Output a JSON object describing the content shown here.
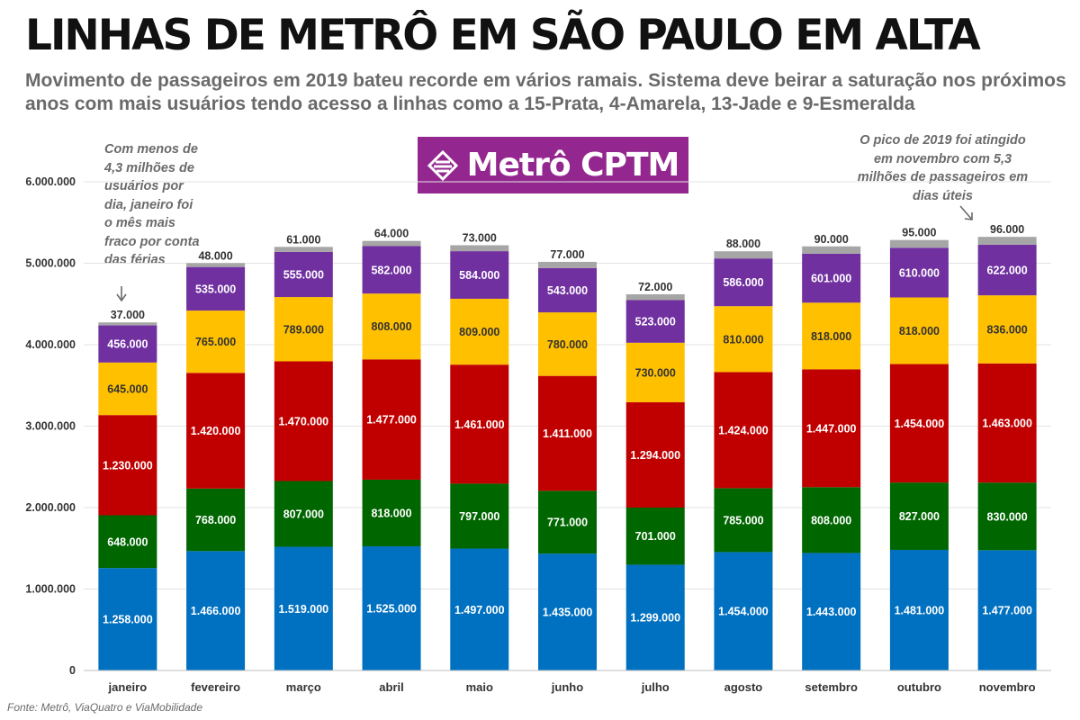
{
  "header": {
    "title": "LINHAS DE METRÔ EM SÃO PAULO EM ALTA",
    "subtitle": "Movimento de passageiros em 2019 bateu recorde em vários ramais. Sistema deve beirar a saturação nos próximos anos com mais usuários tendo acesso a linhas como a 15-Prata, 4-Amarela, 13-Jade e 9-Esmeralda"
  },
  "logo": {
    "text": "Metrô CPTM",
    "color": "#93278f"
  },
  "annotations": {
    "left": "Com menos de 4,3 milhões de usuários por dia, janeiro foi o mês mais fraco por conta das férias",
    "right": "O pico de 2019 foi atingido em novembro com 5,3 milhões de passageiros em dias úteis"
  },
  "source": "Fonte: Metrô, ViaQuatro e ViaMobilidade",
  "chart_data": {
    "type": "bar",
    "stacked": true,
    "categories": [
      "janeiro",
      "fevereiro",
      "março",
      "abril",
      "maio",
      "junho",
      "julho",
      "agosto",
      "setembro",
      "outubro",
      "novembro"
    ],
    "series": [
      {
        "color": "#0070c0",
        "values": [
          1258000,
          1466000,
          1519000,
          1525000,
          1497000,
          1435000,
          1299000,
          1454000,
          1443000,
          1481000,
          1477000
        ],
        "labels": [
          "1.258.000",
          "1.466.000",
          "1.519.000",
          "1.525.000",
          "1.497.000",
          "1.435.000",
          "1.299.000",
          "1.454.000",
          "1.443.000",
          "1.481.000",
          "1.477.000"
        ]
      },
      {
        "color": "#006600",
        "values": [
          648000,
          768000,
          807000,
          818000,
          797000,
          771000,
          701000,
          785000,
          808000,
          827000,
          830000
        ],
        "labels": [
          "648.000",
          "768.000",
          "807.000",
          "818.000",
          "797.000",
          "771.000",
          "701.000",
          "785.000",
          "808.000",
          "827.000",
          "830.000"
        ]
      },
      {
        "color": "#c00000",
        "values": [
          1230000,
          1420000,
          1470000,
          1477000,
          1461000,
          1411000,
          1294000,
          1424000,
          1447000,
          1454000,
          1463000
        ],
        "labels": [
          "1.230.000",
          "1.420.000",
          "1.470.000",
          "1.477.000",
          "1.461.000",
          "1.411.000",
          "1.294.000",
          "1.424.000",
          "1.447.000",
          "1.454.000",
          "1.463.000"
        ]
      },
      {
        "color": "#ffc000",
        "values": [
          645000,
          765000,
          789000,
          808000,
          809000,
          780000,
          730000,
          810000,
          818000,
          818000,
          836000
        ],
        "labels": [
          "645.000",
          "765.000",
          "789.000",
          "808.000",
          "809.000",
          "780.000",
          "730.000",
          "810.000",
          "818.000",
          "818.000",
          "836.000"
        ]
      },
      {
        "color": "#7030a0",
        "values": [
          456000,
          535000,
          555000,
          582000,
          584000,
          543000,
          523000,
          586000,
          601000,
          610000,
          622000
        ],
        "labels": [
          "456.000",
          "535.000",
          "555.000",
          "582.000",
          "584.000",
          "543.000",
          "523.000",
          "586.000",
          "601.000",
          "610.000",
          "622.000"
        ]
      },
      {
        "color": "#a6a6a6",
        "values": [
          37000,
          48000,
          61000,
          64000,
          73000,
          77000,
          72000,
          88000,
          90000,
          95000,
          96000
        ],
        "labels": [
          "37.000",
          "48.000",
          "61.000",
          "64.000",
          "73.000",
          "77.000",
          "72.000",
          "88.000",
          "90.000",
          "95.000",
          "96.000"
        ]
      }
    ],
    "y_ticks": [
      0,
      1000000,
      2000000,
      3000000,
      4000000,
      5000000,
      6000000
    ],
    "y_tick_labels": [
      "0",
      "1.000.000",
      "2.000.000",
      "3.000.000",
      "4.000.000",
      "5.000.000",
      "6.000.000"
    ],
    "ylim": [
      0,
      6000000
    ],
    "grid": true,
    "legend": "none"
  }
}
